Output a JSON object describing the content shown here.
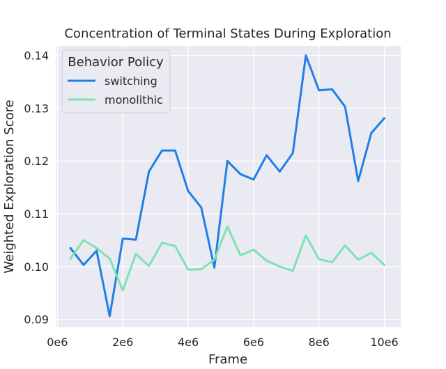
{
  "chart_data": {
    "type": "line",
    "title": "Concentration of Terminal States During Exploration",
    "xlabel": "Frame",
    "ylabel": "Weighted Exploration Score",
    "xlim": [
      -50000,
      10500000
    ],
    "ylim": [
      0.0885,
      0.1418
    ],
    "x_ticks": [
      0,
      2000000,
      4000000,
      6000000,
      8000000,
      10000000
    ],
    "x_tick_labels": [
      "0e6",
      "2e6",
      "4e6",
      "6e6",
      "8e6",
      "10e6"
    ],
    "y_ticks": [
      0.09,
      0.1,
      0.11,
      0.12,
      0.13,
      0.14
    ],
    "y_tick_labels": [
      "0.09",
      "0.10",
      "0.11",
      "0.12",
      "0.13",
      "0.14"
    ],
    "grid": true,
    "legend": {
      "title": "Behavior Policy",
      "placement": "top-left"
    },
    "x": [
      400000,
      800000,
      1200000,
      1600000,
      2000000,
      2400000,
      2800000,
      3200000,
      3600000,
      4000000,
      4400000,
      4800000,
      5200000,
      5600000,
      6000000,
      6400000,
      6800000,
      7200000,
      7600000,
      8000000,
      8400000,
      8800000,
      9200000,
      9600000,
      10000000
    ],
    "series": [
      {
        "name": "switching",
        "color": "#1f7fe6",
        "values": [
          0.1035,
          0.1003,
          0.103,
          0.0906,
          0.1053,
          0.1051,
          0.118,
          0.122,
          0.122,
          0.1143,
          0.1112,
          0.0998,
          0.12,
          0.1175,
          0.1165,
          0.1211,
          0.118,
          0.1215,
          0.14,
          0.1334,
          0.1336,
          0.1303,
          0.1162,
          0.1253,
          0.1281
        ]
      },
      {
        "name": "monolithic",
        "color": "#7de2b4",
        "values": [
          0.1015,
          0.105,
          0.1035,
          0.1015,
          0.0955,
          0.1024,
          0.1001,
          0.1045,
          0.1039,
          0.0994,
          0.0995,
          0.1013,
          0.1076,
          0.1021,
          0.1032,
          0.1011,
          0.1,
          0.0992,
          0.1059,
          0.1014,
          0.1008,
          0.104,
          0.1013,
          0.1026,
          0.1003
        ]
      }
    ]
  }
}
